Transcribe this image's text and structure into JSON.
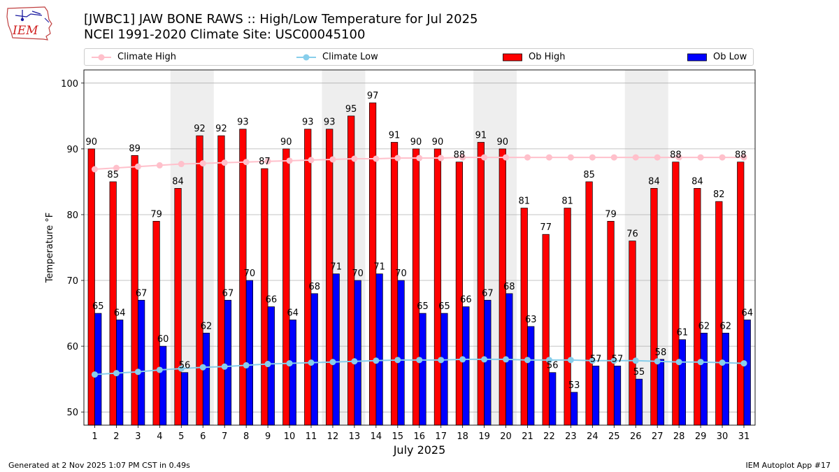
{
  "header": {
    "title_line1": "[JWBC1] JAW BONE RAWS :: High/Low Temperature for Jul 2025",
    "title_line2": "NCEI 1991-2020 Climate Site: USC00045100",
    "logo_text": "IEM"
  },
  "legend": {
    "items": [
      {
        "label": "Climate High",
        "kind": "line",
        "color": "#ffc0cb"
      },
      {
        "label": "Climate Low",
        "kind": "line",
        "color": "#87ceeb"
      },
      {
        "label": "Ob High",
        "kind": "bar",
        "color": "#ff0000"
      },
      {
        "label": "Ob Low",
        "kind": "bar",
        "color": "#0000ff"
      }
    ]
  },
  "footer": {
    "left": "Generated at 2 Nov 2025 1:07 PM CST in 0.49s",
    "right": "IEM Autoplot App #17"
  },
  "chart_data": {
    "type": "bar",
    "xlabel": "July 2025",
    "ylabel": "Temperature °F",
    "ylim": [
      48,
      102
    ],
    "yticks": [
      50,
      60,
      70,
      80,
      90,
      100
    ],
    "grid": "horizontal",
    "legend_position": "top",
    "shaded_weekends": [
      [
        5,
        6
      ],
      [
        12,
        13
      ],
      [
        19,
        20
      ],
      [
        26,
        27
      ]
    ],
    "categories": [
      1,
      2,
      3,
      4,
      5,
      6,
      7,
      8,
      9,
      10,
      11,
      12,
      13,
      14,
      15,
      16,
      17,
      18,
      19,
      20,
      21,
      22,
      23,
      24,
      25,
      26,
      27,
      28,
      29,
      30,
      31
    ],
    "series": [
      {
        "name": "Ob High",
        "kind": "bar",
        "color": "#ff0000",
        "values": [
          90,
          85,
          89,
          79,
          84,
          92,
          92,
          93,
          87,
          90,
          93,
          93,
          95,
          97,
          91,
          90,
          90,
          88,
          91,
          90,
          81,
          77,
          81,
          85,
          79,
          76,
          84,
          88,
          84,
          82,
          88
        ]
      },
      {
        "name": "Ob Low",
        "kind": "bar",
        "color": "#0000ff",
        "values": [
          65,
          64,
          67,
          60,
          56,
          62,
          67,
          70,
          66,
          64,
          68,
          71,
          70,
          71,
          70,
          65,
          65,
          66,
          67,
          68,
          63,
          56,
          53,
          57,
          57,
          55,
          58,
          61,
          62,
          62,
          64
        ]
      },
      {
        "name": "Climate High",
        "kind": "line",
        "color": "#ffc0cb",
        "values": [
          86.9,
          87.1,
          87.3,
          87.5,
          87.7,
          87.8,
          87.9,
          88.0,
          88.1,
          88.2,
          88.3,
          88.4,
          88.5,
          88.5,
          88.6,
          88.6,
          88.6,
          88.7,
          88.7,
          88.7,
          88.7,
          88.7,
          88.7,
          88.7,
          88.7,
          88.7,
          88.7,
          88.7,
          88.7,
          88.7,
          88.7
        ]
      },
      {
        "name": "Climate Low",
        "kind": "line",
        "color": "#87ceeb",
        "values": [
          55.7,
          55.9,
          56.1,
          56.4,
          56.6,
          56.8,
          56.9,
          57.1,
          57.3,
          57.4,
          57.5,
          57.6,
          57.7,
          57.8,
          57.9,
          57.9,
          57.9,
          58.0,
          58.0,
          58.0,
          57.9,
          57.9,
          57.9,
          57.8,
          57.8,
          57.8,
          57.7,
          57.6,
          57.6,
          57.5,
          57.4
        ]
      }
    ]
  }
}
